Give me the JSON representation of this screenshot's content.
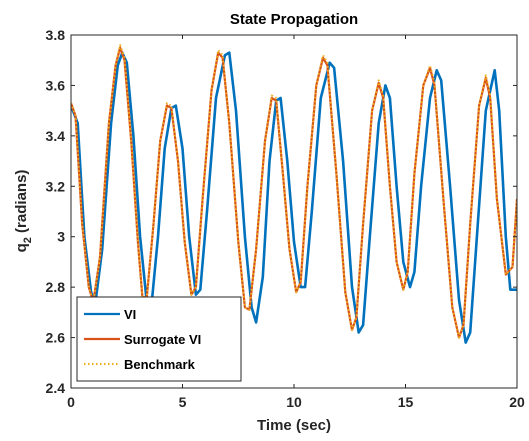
{
  "chart_data": {
    "type": "line",
    "title": "State Propagation",
    "xlabel": "Time (sec)",
    "ylabel_main": "q",
    "ylabel_sub": "2",
    "ylabel_rest": " (radians)",
    "xlim": [
      0,
      20
    ],
    "ylim": [
      2.4,
      3.8
    ],
    "x_ticks": [
      0,
      5,
      10,
      15,
      20
    ],
    "x_tick_labels": [
      "0",
      "5",
      "10",
      "15",
      "20"
    ],
    "y_ticks": [
      2.4,
      2.6,
      2.8,
      3.0,
      3.2,
      3.4,
      3.6,
      3.8
    ],
    "y_tick_labels": [
      "2.4",
      "2.6",
      "2.8",
      "3",
      "3.2",
      "3.4",
      "3.6",
      "3.8"
    ],
    "grid": false,
    "legend_position": "bottom-left",
    "series": [
      {
        "name": "VI",
        "color": "#0072BD",
        "style": "solid",
        "points": [
          [
            0,
            3.52
          ],
          [
            0.3,
            3.45
          ],
          [
            0.6,
            3.0
          ],
          [
            0.9,
            2.78
          ],
          [
            1.1,
            2.74
          ],
          [
            1.4,
            2.95
          ],
          [
            1.8,
            3.45
          ],
          [
            2.1,
            3.68
          ],
          [
            2.3,
            3.73
          ],
          [
            2.5,
            3.69
          ],
          [
            2.8,
            3.4
          ],
          [
            3.1,
            3.0
          ],
          [
            3.4,
            2.74
          ],
          [
            3.6,
            2.72
          ],
          [
            3.9,
            3.0
          ],
          [
            4.2,
            3.35
          ],
          [
            4.5,
            3.51
          ],
          [
            4.7,
            3.52
          ],
          [
            5.0,
            3.35
          ],
          [
            5.3,
            3.0
          ],
          [
            5.6,
            2.77
          ],
          [
            5.8,
            2.79
          ],
          [
            6.1,
            3.1
          ],
          [
            6.5,
            3.55
          ],
          [
            6.9,
            3.72
          ],
          [
            7.1,
            3.73
          ],
          [
            7.4,
            3.5
          ],
          [
            7.8,
            3.0
          ],
          [
            8.1,
            2.72
          ],
          [
            8.3,
            2.66
          ],
          [
            8.6,
            2.84
          ],
          [
            8.9,
            3.3
          ],
          [
            9.2,
            3.54
          ],
          [
            9.4,
            3.55
          ],
          [
            9.7,
            3.3
          ],
          [
            10.0,
            2.98
          ],
          [
            10.3,
            2.8
          ],
          [
            10.5,
            2.8
          ],
          [
            10.8,
            3.1
          ],
          [
            11.2,
            3.55
          ],
          [
            11.6,
            3.69
          ],
          [
            11.8,
            3.67
          ],
          [
            12.2,
            3.3
          ],
          [
            12.6,
            2.8
          ],
          [
            12.9,
            2.62
          ],
          [
            13.1,
            2.65
          ],
          [
            13.4,
            3.0
          ],
          [
            13.8,
            3.45
          ],
          [
            14.1,
            3.6
          ],
          [
            14.3,
            3.55
          ],
          [
            14.6,
            3.2
          ],
          [
            14.9,
            2.9
          ],
          [
            15.2,
            2.8
          ],
          [
            15.4,
            2.86
          ],
          [
            15.7,
            3.2
          ],
          [
            16.1,
            3.55
          ],
          [
            16.4,
            3.66
          ],
          [
            16.6,
            3.62
          ],
          [
            17.0,
            3.2
          ],
          [
            17.4,
            2.75
          ],
          [
            17.7,
            2.58
          ],
          [
            17.9,
            2.62
          ],
          [
            18.2,
            3.0
          ],
          [
            18.6,
            3.5
          ],
          [
            19.0,
            3.66
          ],
          [
            19.2,
            3.5
          ],
          [
            19.5,
            3.0
          ],
          [
            19.7,
            2.79
          ],
          [
            20.0,
            2.79
          ]
        ]
      },
      {
        "name": "Surrogate VI",
        "color": "#D95319",
        "style": "solid",
        "points": [
          [
            0,
            3.53
          ],
          [
            0.2,
            3.48
          ],
          [
            0.5,
            3.05
          ],
          [
            0.8,
            2.8
          ],
          [
            1.0,
            2.74
          ],
          [
            1.3,
            2.92
          ],
          [
            1.7,
            3.45
          ],
          [
            2.0,
            3.68
          ],
          [
            2.2,
            3.75
          ],
          [
            2.4,
            3.7
          ],
          [
            2.7,
            3.38
          ],
          [
            3.0,
            2.98
          ],
          [
            3.2,
            2.76
          ],
          [
            3.4,
            2.76
          ],
          [
            3.7,
            3.05
          ],
          [
            4.0,
            3.38
          ],
          [
            4.3,
            3.52
          ],
          [
            4.5,
            3.51
          ],
          [
            4.8,
            3.3
          ],
          [
            5.1,
            2.98
          ],
          [
            5.4,
            2.77
          ],
          [
            5.6,
            2.8
          ],
          [
            5.9,
            3.15
          ],
          [
            6.3,
            3.58
          ],
          [
            6.6,
            3.73
          ],
          [
            6.8,
            3.71
          ],
          [
            7.1,
            3.45
          ],
          [
            7.5,
            2.98
          ],
          [
            7.8,
            2.72
          ],
          [
            8.0,
            2.71
          ],
          [
            8.3,
            2.95
          ],
          [
            8.7,
            3.38
          ],
          [
            9.0,
            3.55
          ],
          [
            9.2,
            3.54
          ],
          [
            9.5,
            3.25
          ],
          [
            9.8,
            2.95
          ],
          [
            10.1,
            2.78
          ],
          [
            10.3,
            2.82
          ],
          [
            10.6,
            3.2
          ],
          [
            11.0,
            3.6
          ],
          [
            11.3,
            3.71
          ],
          [
            11.5,
            3.68
          ],
          [
            11.9,
            3.25
          ],
          [
            12.3,
            2.78
          ],
          [
            12.6,
            2.63
          ],
          [
            12.8,
            2.68
          ],
          [
            13.1,
            3.05
          ],
          [
            13.5,
            3.5
          ],
          [
            13.8,
            3.61
          ],
          [
            14.0,
            3.55
          ],
          [
            14.3,
            3.2
          ],
          [
            14.6,
            2.9
          ],
          [
            14.9,
            2.79
          ],
          [
            15.1,
            2.86
          ],
          [
            15.4,
            3.25
          ],
          [
            15.8,
            3.6
          ],
          [
            16.1,
            3.67
          ],
          [
            16.3,
            3.6
          ],
          [
            16.7,
            3.15
          ],
          [
            17.1,
            2.72
          ],
          [
            17.4,
            2.6
          ],
          [
            17.6,
            2.65
          ],
          [
            17.9,
            3.05
          ],
          [
            18.3,
            3.52
          ],
          [
            18.6,
            3.63
          ],
          [
            18.8,
            3.55
          ],
          [
            19.1,
            3.15
          ],
          [
            19.5,
            2.85
          ],
          [
            19.8,
            2.88
          ],
          [
            20.0,
            3.15
          ]
        ]
      },
      {
        "name": "Benchmark",
        "color": "#EDB120",
        "style": "dotted",
        "points": [
          [
            0,
            3.53
          ],
          [
            0.2,
            3.48
          ],
          [
            0.5,
            3.05
          ],
          [
            0.8,
            2.8
          ],
          [
            1.0,
            2.74
          ],
          [
            1.3,
            2.92
          ],
          [
            1.7,
            3.45
          ],
          [
            2.0,
            3.68
          ],
          [
            2.2,
            3.76
          ],
          [
            2.4,
            3.71
          ],
          [
            2.7,
            3.38
          ],
          [
            3.0,
            2.98
          ],
          [
            3.2,
            2.76
          ],
          [
            3.4,
            2.76
          ],
          [
            3.7,
            3.05
          ],
          [
            4.0,
            3.38
          ],
          [
            4.3,
            3.53
          ],
          [
            4.5,
            3.52
          ],
          [
            4.8,
            3.3
          ],
          [
            5.1,
            2.98
          ],
          [
            5.4,
            2.77
          ],
          [
            5.6,
            2.8
          ],
          [
            5.9,
            3.15
          ],
          [
            6.3,
            3.58
          ],
          [
            6.6,
            3.74
          ],
          [
            6.8,
            3.72
          ],
          [
            7.1,
            3.45
          ],
          [
            7.5,
            2.98
          ],
          [
            7.8,
            2.72
          ],
          [
            8.0,
            2.71
          ],
          [
            8.3,
            2.95
          ],
          [
            8.7,
            3.38
          ],
          [
            9.0,
            3.56
          ],
          [
            9.2,
            3.55
          ],
          [
            9.5,
            3.25
          ],
          [
            9.8,
            2.95
          ],
          [
            10.1,
            2.78
          ],
          [
            10.3,
            2.82
          ],
          [
            10.6,
            3.2
          ],
          [
            11.0,
            3.6
          ],
          [
            11.3,
            3.72
          ],
          [
            11.5,
            3.69
          ],
          [
            11.9,
            3.25
          ],
          [
            12.3,
            2.78
          ],
          [
            12.6,
            2.63
          ],
          [
            12.8,
            2.68
          ],
          [
            13.1,
            3.05
          ],
          [
            13.5,
            3.5
          ],
          [
            13.8,
            3.62
          ],
          [
            14.0,
            3.56
          ],
          [
            14.3,
            3.2
          ],
          [
            14.6,
            2.9
          ],
          [
            14.9,
            2.79
          ],
          [
            15.1,
            2.86
          ],
          [
            15.4,
            3.25
          ],
          [
            15.8,
            3.6
          ],
          [
            16.1,
            3.68
          ],
          [
            16.3,
            3.61
          ],
          [
            16.7,
            3.15
          ],
          [
            17.1,
            2.72
          ],
          [
            17.4,
            2.6
          ],
          [
            17.6,
            2.65
          ],
          [
            17.9,
            3.05
          ],
          [
            18.3,
            3.52
          ],
          [
            18.6,
            3.64
          ],
          [
            18.8,
            3.56
          ],
          [
            19.1,
            3.15
          ],
          [
            19.5,
            2.85
          ],
          [
            19.8,
            2.88
          ],
          [
            20.0,
            3.15
          ]
        ]
      }
    ]
  }
}
